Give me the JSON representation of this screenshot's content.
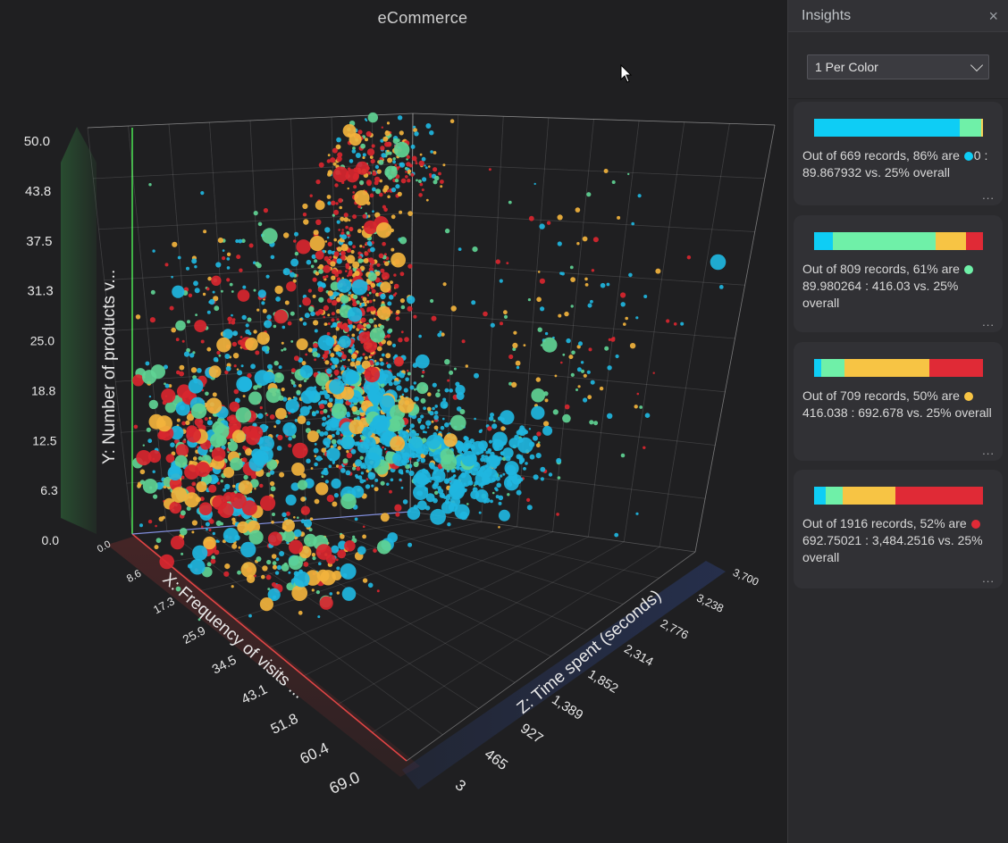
{
  "chart": {
    "title": "eCommerce",
    "x_axis_label": "X: Frequency of visits ...",
    "y_axis_label": "Y: Number of products v...",
    "z_axis_label": "Z: Time spent (seconds)",
    "x_ticks": [
      "0.0",
      "8.6",
      "17.3",
      "25.9",
      "34.5",
      "43.1",
      "51.8",
      "60.4",
      "69.0"
    ],
    "y_ticks": [
      "0.0",
      "6.3",
      "12.5",
      "18.8",
      "25.0",
      "31.3",
      "37.5",
      "43.8",
      "50.0"
    ],
    "z_ticks": [
      "3",
      "465",
      "927",
      "1,389",
      "1,852",
      "2,314",
      "2,776",
      "3,238",
      "3,700"
    ],
    "colors": {
      "cyan": "#1fb6e0",
      "green": "#5fd394",
      "yellow": "#f2b33d",
      "red": "#d8262f"
    }
  },
  "chart_data": {
    "type": "scatter",
    "title": "eCommerce",
    "xlabel": "X: Frequency of visits ...",
    "ylabel": "Y: Number of products v...",
    "zlabel": "Z: Time spent (seconds)",
    "xlim": [
      0,
      69
    ],
    "ylim": [
      0,
      50
    ],
    "zlim": [
      3,
      3700
    ],
    "series": [
      {
        "name": "0 : 89.867932",
        "color": "#1fb6e0"
      },
      {
        "name": "89.980264 : 416.03",
        "color": "#5fd394"
      },
      {
        "name": "416.038 : 692.678",
        "color": "#f2b33d"
      },
      {
        "name": "692.75021 : 3,484.2516",
        "color": "#d8262f"
      }
    ]
  },
  "insights": {
    "title": "Insights",
    "close_icon": "×",
    "mode_select": {
      "value": "1 Per Color"
    },
    "more_label": "...",
    "cards": [
      {
        "segments": [
          {
            "color": "#0ecdf5",
            "pct": 86
          },
          {
            "color": "#6ff0a8",
            "pct": 13
          },
          {
            "color": "#f7d057",
            "pct": 1
          }
        ],
        "text_before": "Out of 669 records, 86% are ",
        "dot_color": "#0ecdf5",
        "text_after": "0 : 89.867932 vs. 25% overall"
      },
      {
        "segments": [
          {
            "color": "#0ecdf5",
            "pct": 11
          },
          {
            "color": "#6ff0a8",
            "pct": 61
          },
          {
            "color": "#f7c444",
            "pct": 18
          },
          {
            "color": "#e02a36",
            "pct": 10
          }
        ],
        "text_before": "Out of 809 records, 61% are ",
        "dot_color": "#6ff0a8",
        "text_after": "89.980264 : 416.03 vs. 25% overall"
      },
      {
        "segments": [
          {
            "color": "#0ecdf5",
            "pct": 4
          },
          {
            "color": "#6ff0a8",
            "pct": 14
          },
          {
            "color": "#f7c444",
            "pct": 50
          },
          {
            "color": "#e02a36",
            "pct": 32
          }
        ],
        "text_before": "Out of 709 records, 50% are ",
        "dot_color": "#f7c444",
        "text_after": "416.038 : 692.678 vs. 25% overall"
      },
      {
        "segments": [
          {
            "color": "#0ecdf5",
            "pct": 7
          },
          {
            "color": "#6ff0a8",
            "pct": 10
          },
          {
            "color": "#f7c444",
            "pct": 31
          },
          {
            "color": "#e02a36",
            "pct": 52
          }
        ],
        "text_before": "Out of 1916 records, 52% are ",
        "dot_color": "#e02a36",
        "text_after": "692.75021 : 3,484.2516 vs. 25% overall"
      }
    ]
  }
}
